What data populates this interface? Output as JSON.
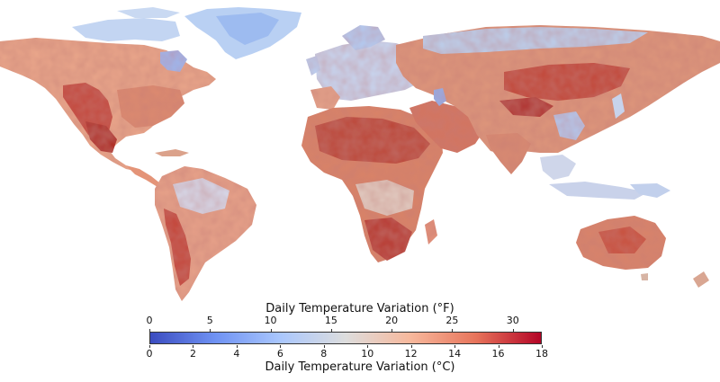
{
  "map": {
    "projection": "equirectangular world map",
    "land_color_low": "#b7cdf0",
    "land_color_high": "#b3242a",
    "ocean_color": "#ffffff"
  },
  "colorbar": {
    "title_top": "Daily Temperature Variation (°F)",
    "title_bottom": "Daily Temperature Variation (°C)",
    "top_ticks": [
      "0",
      "5",
      "10",
      "15",
      "20",
      "25",
      "30"
    ],
    "top_tick_values": [
      0,
      5,
      10,
      15,
      20,
      25,
      30
    ],
    "top_range": [
      0,
      32.4
    ],
    "bottom_ticks": [
      "0",
      "2",
      "4",
      "6",
      "8",
      "10",
      "12",
      "14",
      "16",
      "18"
    ],
    "bottom_tick_values": [
      0,
      2,
      4,
      6,
      8,
      10,
      12,
      14,
      16,
      18
    ],
    "bottom_range": [
      0,
      18
    ],
    "colormap": [
      "#3b4cc0",
      "#6f92f3",
      "#aac7fd",
      "#dddddd",
      "#f7b89c",
      "#e7745b",
      "#b40426"
    ]
  }
}
